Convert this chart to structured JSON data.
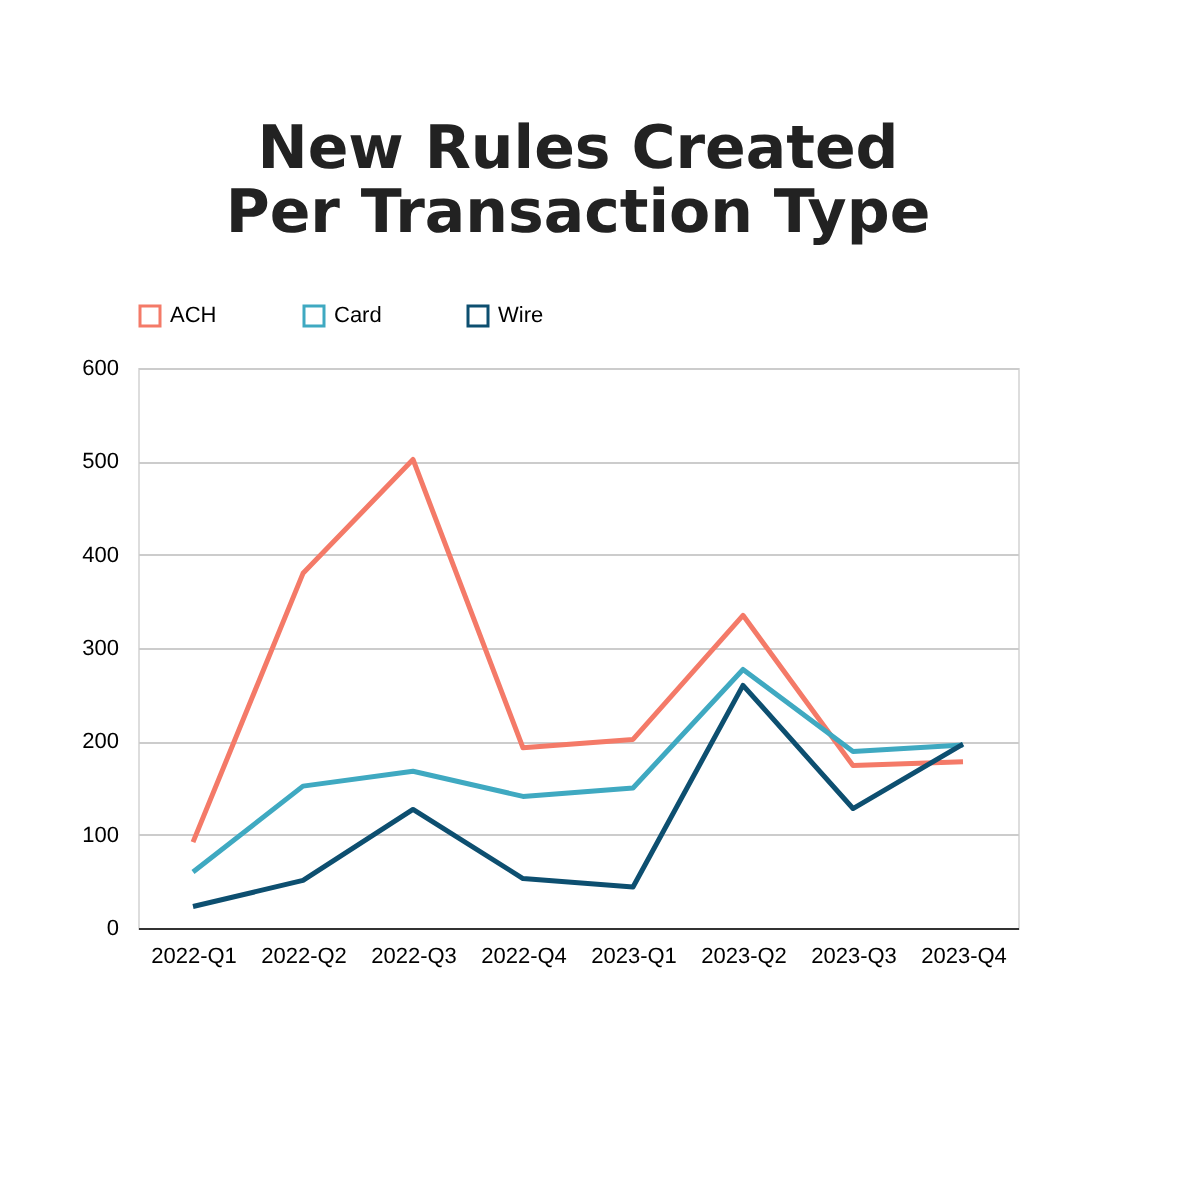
{
  "chart_data": {
    "type": "line",
    "title": [
      "New Rules Created",
      "Per Transaction Type"
    ],
    "categories": [
      "2022-Q1",
      "2022-Q2",
      "2022-Q3",
      "2022-Q4",
      "2023-Q1",
      "2023-Q2",
      "2023-Q3",
      "2023-Q4"
    ],
    "series": [
      {
        "name": "ACH",
        "color": "#f47a68",
        "values": [
          92,
          380,
          502,
          193,
          202,
          335,
          174,
          178
        ]
      },
      {
        "name": "Card",
        "color": "#3fa9c1",
        "values": [
          60,
          152,
          168,
          141,
          150,
          277,
          189,
          196
        ]
      },
      {
        "name": "Wire",
        "color": "#0d4f70",
        "values": [
          23,
          51,
          127,
          53,
          44,
          260,
          128,
          197
        ]
      }
    ],
    "ylim": [
      0,
      600
    ],
    "yticks": [
      0,
      100,
      200,
      300,
      400,
      500,
      600
    ],
    "grid": "y",
    "legend": "top",
    "marker": "none",
    "line_style": "solid"
  }
}
